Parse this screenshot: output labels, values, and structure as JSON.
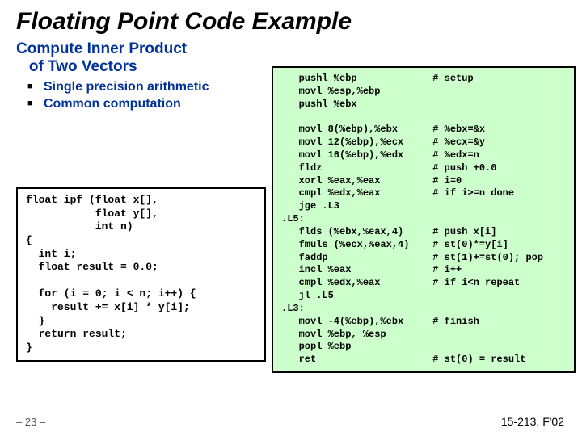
{
  "title": "Floating Point Code Example",
  "subtitle_l1": "Compute Inner Product",
  "subtitle_l2": "of Two Vectors",
  "bullets": {
    "b1": "Single precision arithmetic",
    "b2": "Common computation"
  },
  "code_c": "float ipf (float x[],\n           float y[],\n           int n)\n{\n  int i;\n  float result = 0.0;\n\n  for (i = 0; i < n; i++) {\n    result += x[i] * y[i];\n  }\n  return result;\n}",
  "code_asm": "   pushl %ebp             # setup\n   movl %esp,%ebp\n   pushl %ebx\n\n   movl 8(%ebp),%ebx      # %ebx=&x\n   movl 12(%ebp),%ecx     # %ecx=&y\n   movl 16(%ebp),%edx     # %edx=n\n   fldz                   # push +0.0\n   xorl %eax,%eax         # i=0\n   cmpl %edx,%eax         # if i>=n done\n   jge .L3\n.L5:\n   flds (%ebx,%eax,4)     # push x[i]\n   fmuls (%ecx,%eax,4)    # st(0)*=y[i]\n   faddp                  # st(1)+=st(0); pop\n   incl %eax              # i++\n   cmpl %edx,%eax         # if i<n repeat\n   jl .L5\n.L3:\n   movl -4(%ebp),%ebx     # finish\n   movl %ebp, %esp\n   popl %ebp\n   ret                    # st(0) = result",
  "footer_left": "– 23 –",
  "footer_right": "15-213, F'02",
  "colors": {
    "slide_bg": "#ffffff",
    "title_color": "#000000",
    "subtitle_color": "#003399",
    "asm_bg": "#ccffcc",
    "border": "#000000"
  }
}
